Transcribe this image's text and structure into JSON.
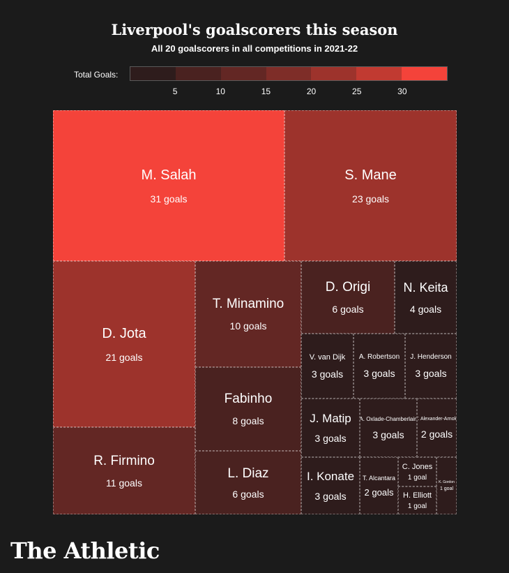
{
  "header": {
    "title": "Liverpool's goalscorers this season",
    "subtitle": "All 20 goalscorers in all competitions in 2021-22"
  },
  "legend": {
    "label": "Total Goals:",
    "ticks": [
      "5",
      "10",
      "15",
      "20",
      "25",
      "30"
    ],
    "colors": [
      "#2e1c1c",
      "#4a2220",
      "#632724",
      "#7e2d28",
      "#9d332c",
      "#c13a31",
      "#f4433a"
    ]
  },
  "brand": "The Athletic",
  "chart_data": {
    "type": "treemap",
    "title": "Liverpool's goalscorers this season",
    "subtitle": "All 20 goalscorers in all competitions in 2021-22",
    "color_scale": {
      "label": "Total Goals:",
      "ticks": [
        5,
        10,
        15,
        20,
        25,
        30
      ]
    },
    "items": [
      {
        "name": "M. Salah",
        "goals": 31,
        "label": "31 goals"
      },
      {
        "name": "S. Mane",
        "goals": 23,
        "label": "23 goals"
      },
      {
        "name": "D. Jota",
        "goals": 21,
        "label": "21 goals"
      },
      {
        "name": "R. Firmino",
        "goals": 11,
        "label": "11 goals"
      },
      {
        "name": "T. Minamino",
        "goals": 10,
        "label": "10 goals"
      },
      {
        "name": "Fabinho",
        "goals": 8,
        "label": "8 goals"
      },
      {
        "name": "L. Diaz",
        "goals": 6,
        "label": "6 goals"
      },
      {
        "name": "D. Origi",
        "goals": 6,
        "label": "6 goals"
      },
      {
        "name": "N. Keita",
        "goals": 4,
        "label": "4 goals"
      },
      {
        "name": "V. van Dijk",
        "goals": 3,
        "label": "3 goals"
      },
      {
        "name": "A. Robertson",
        "goals": 3,
        "label": "3 goals"
      },
      {
        "name": "J. Henderson",
        "goals": 3,
        "label": "3 goals"
      },
      {
        "name": "J. Matip",
        "goals": 3,
        "label": "3 goals"
      },
      {
        "name": "A. Oxlade-Chamberlain",
        "goals": 3,
        "label": "3 goals"
      },
      {
        "name": "T. Alexander-Arnold",
        "goals": 2,
        "label": "2 goals"
      },
      {
        "name": "I. Konate",
        "goals": 3,
        "label": "3 goals"
      },
      {
        "name": "T. Alcantara",
        "goals": 2,
        "label": "2 goals"
      },
      {
        "name": "C. Jones",
        "goals": 1,
        "label": "1 goal"
      },
      {
        "name": "H. Elliott",
        "goals": 1,
        "label": "1 goal"
      },
      {
        "name": "K. Gordon",
        "goals": 1,
        "label": "1 goal"
      }
    ]
  }
}
